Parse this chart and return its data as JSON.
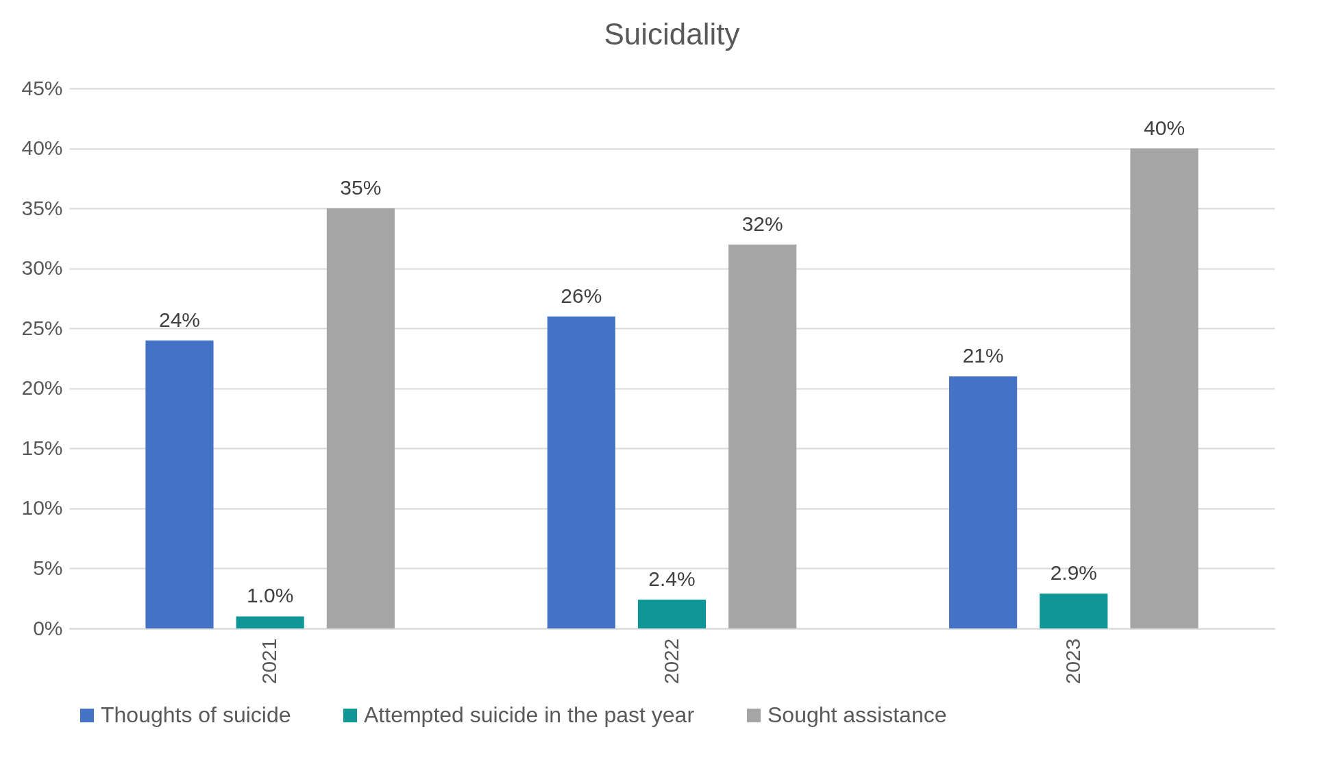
{
  "chart_data": {
    "type": "bar",
    "title": "Suicidality",
    "categories": [
      "2021",
      "2022",
      "2023"
    ],
    "series": [
      {
        "name": "Thoughts of suicide",
        "color": "#4472c4",
        "values": [
          24,
          26,
          21
        ],
        "value_labels": [
          "24%",
          "26%",
          "21%"
        ]
      },
      {
        "name": "Attempted suicide in the past year",
        "color": "#0f9696",
        "values": [
          1.0,
          2.4,
          2.9
        ],
        "value_labels": [
          "1.0%",
          "2.4%",
          "2.9%"
        ]
      },
      {
        "name": "Sought assistance",
        "color": "#a5a5a5",
        "values": [
          35,
          32,
          40
        ],
        "value_labels": [
          "35%",
          "32%",
          "40%"
        ]
      }
    ],
    "ylim": [
      0,
      45
    ],
    "yticks": [
      {
        "value": 0,
        "label": "0%"
      },
      {
        "value": 5,
        "label": "5%"
      },
      {
        "value": 10,
        "label": "10%"
      },
      {
        "value": 15,
        "label": "15%"
      },
      {
        "value": 20,
        "label": "20%"
      },
      {
        "value": 25,
        "label": "25%"
      },
      {
        "value": 30,
        "label": "30%"
      },
      {
        "value": 35,
        "label": "35%"
      },
      {
        "value": 40,
        "label": "40%"
      },
      {
        "value": 45,
        "label": "45%"
      }
    ],
    "grid": "y",
    "legend": "bottom"
  }
}
